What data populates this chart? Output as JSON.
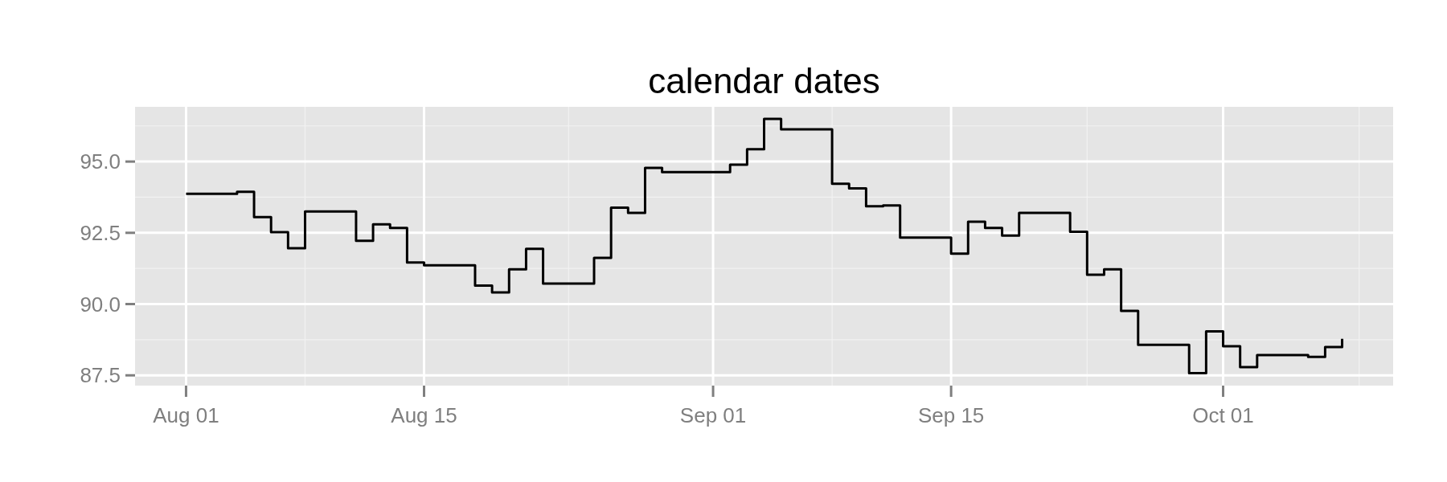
{
  "chart_data": {
    "type": "step",
    "title": "calendar dates",
    "x": [
      "--08-01",
      "--08-04",
      "--08-05",
      "--08-06",
      "--08-07",
      "--08-08",
      "--08-11",
      "--08-12",
      "--08-13",
      "--08-14",
      "--08-15",
      "--08-18",
      "--08-19",
      "--08-20",
      "--08-21",
      "--08-22",
      "--08-25",
      "--08-26",
      "--08-27",
      "--08-28",
      "--08-29",
      "--09-02",
      "--09-03",
      "--09-04",
      "--09-05",
      "--09-08",
      "--09-09",
      "--09-10",
      "--09-11",
      "--09-12",
      "--09-15",
      "--09-16",
      "--09-17",
      "--09-18",
      "--09-19",
      "--09-22",
      "--09-23",
      "--09-24",
      "--09-25",
      "--09-26",
      "--09-29",
      "--09-30",
      "--10-01",
      "--10-02",
      "--10-03",
      "--10-06",
      "--10-07",
      "--10-08"
    ],
    "series": [
      {
        "color": "#000000",
        "values": [
          93.87,
          93.94,
          93.05,
          92.52,
          91.96,
          93.25,
          92.22,
          92.8,
          92.67,
          91.46,
          91.36,
          90.65,
          90.41,
          91.22,
          91.94,
          90.72,
          91.62,
          93.38,
          93.2,
          94.78,
          94.63,
          94.89,
          95.43,
          96.5,
          96.13,
          94.22,
          94.06,
          93.43,
          93.46,
          92.33,
          91.77,
          92.89,
          92.67,
          92.4,
          93.2,
          92.54,
          91.03,
          91.22,
          89.76,
          88.57,
          87.58,
          89.04,
          88.52,
          87.79,
          88.21,
          88.15,
          88.49,
          88.78
        ]
      }
    ],
    "xlim": [
      "--07-29",
      "--10-11"
    ],
    "xticks": [
      {
        "value": "--08-01",
        "label": "Aug 01"
      },
      {
        "value": "--08-15",
        "label": "Aug 15"
      },
      {
        "value": "--09-01",
        "label": "Sep 01"
      },
      {
        "value": "--09-15",
        "label": "Sep 15"
      },
      {
        "value": "--10-01",
        "label": "Oct 01"
      }
    ],
    "ylim": [
      87.14,
      96.92
    ],
    "yticks": [
      {
        "value": 87.5,
        "label": "87.5"
      },
      {
        "value": 90,
        "label": "90.0"
      },
      {
        "value": 92.5,
        "label": "92.5"
      },
      {
        "value": 95,
        "label": "95.0"
      }
    ],
    "grid": true,
    "legend": false,
    "marker": "none",
    "line_style": "solid"
  }
}
